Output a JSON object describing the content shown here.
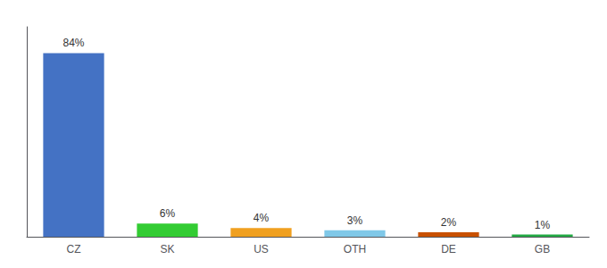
{
  "chart_data": {
    "type": "bar",
    "categories": [
      "CZ",
      "SK",
      "US",
      "OTH",
      "DE",
      "GB"
    ],
    "values": [
      84,
      6,
      4,
      3,
      2,
      1
    ],
    "value_labels": [
      "84%",
      "6%",
      "4%",
      "3%",
      "2%",
      "1%"
    ],
    "colors": [
      "#4472c4",
      "#33cc33",
      "#f0a020",
      "#80c8e8",
      "#c85000",
      "#22aa44"
    ],
    "ylim": [
      0,
      96
    ],
    "data_labels": true,
    "tick_labels": "x",
    "grid": false
  }
}
